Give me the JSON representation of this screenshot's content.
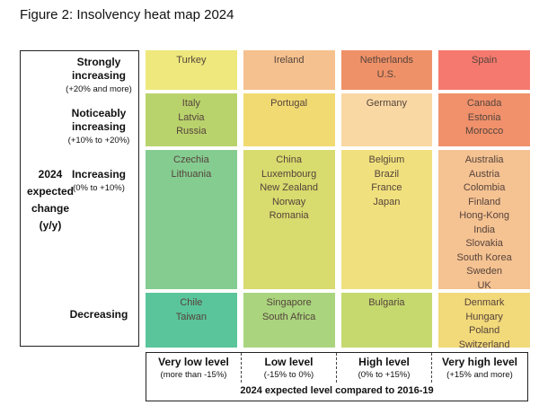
{
  "figure": {
    "title": "Figure 2: Insolvency heat map 2024"
  },
  "y_axis": {
    "title_lines": [
      "2024",
      "expected",
      "change",
      "(y/y)"
    ],
    "categories": [
      {
        "label": "Strongly increasing",
        "sublabel": "(+20% and more)"
      },
      {
        "label": "Noticeably increasing",
        "sublabel": "(+10% to +20%)"
      },
      {
        "label": "Increasing",
        "sublabel": "(0% to +10%)"
      },
      {
        "label": "Decreasing",
        "sublabel": ""
      }
    ]
  },
  "x_axis": {
    "categories": [
      {
        "label": "Very low level",
        "sublabel": "(more than -15%)"
      },
      {
        "label": "Low level",
        "sublabel": "(-15% to 0%)"
      },
      {
        "label": "High level",
        "sublabel": "(0% to +15%)"
      },
      {
        "label": "Very high level",
        "sublabel": "(+15% and more)"
      }
    ],
    "caption": "2024 expected level compared to 2016-19"
  },
  "chart_data": {
    "type": "heatmap",
    "title": "Figure 2: Insolvency heat map 2024",
    "row_labels": [
      "Strongly increasing (+20% and more)",
      "Noticeably increasing (+10% to +20%)",
      "Increasing (0% to +10%)",
      "Decreasing"
    ],
    "column_labels": [
      "Very low level (more than -15%)",
      "Low level (-15% to 0%)",
      "High level (0% to +15%)",
      "Very high level (+15% and more)"
    ],
    "cells": [
      {
        "row": 0,
        "col": 0,
        "countries": [
          "Turkey"
        ],
        "color": "#eee87d"
      },
      {
        "row": 0,
        "col": 1,
        "countries": [
          "Ireland"
        ],
        "color": "#f5c18e"
      },
      {
        "row": 0,
        "col": 2,
        "countries": [
          "Netherlands",
          "U.S."
        ],
        "color": "#ef9168"
      },
      {
        "row": 0,
        "col": 3,
        "countries": [
          "Spain"
        ],
        "color": "#f5796e"
      },
      {
        "row": 1,
        "col": 0,
        "countries": [
          "Italy",
          "Latvia",
          "Russia"
        ],
        "color": "#b9d36c"
      },
      {
        "row": 1,
        "col": 1,
        "countries": [
          "Portugal"
        ],
        "color": "#f1da72"
      },
      {
        "row": 1,
        "col": 2,
        "countries": [
          "Germany"
        ],
        "color": "#f9d8a4"
      },
      {
        "row": 1,
        "col": 3,
        "countries": [
          "Canada",
          "Estonia",
          "Morocco"
        ],
        "color": "#f0916b"
      },
      {
        "row": 2,
        "col": 0,
        "countries": [
          "Czechia",
          "Lithuania"
        ],
        "color": "#85cc91"
      },
      {
        "row": 2,
        "col": 1,
        "countries": [
          "China",
          "Luxembourg",
          "New Zealand",
          "Norway",
          "Romania"
        ],
        "color": "#d8db6e"
      },
      {
        "row": 2,
        "col": 2,
        "countries": [
          "Belgium",
          "Brazil",
          "France",
          "Japan"
        ],
        "color": "#f0e17e"
      },
      {
        "row": 2,
        "col": 3,
        "countries": [
          "Australia",
          "Austria",
          "Colombia",
          "Finland",
          "Hong-Kong",
          "India",
          "Slovakia",
          "South Korea",
          "Sweden",
          "UK"
        ],
        "color": "#f5c292"
      },
      {
        "row": 3,
        "col": 0,
        "countries": [
          "Chile",
          "Taiwan"
        ],
        "color": "#5ac59b"
      },
      {
        "row": 3,
        "col": 1,
        "countries": [
          "Singapore",
          "South Africa"
        ],
        "color": "#aad57e"
      },
      {
        "row": 3,
        "col": 2,
        "countries": [
          "Bulgaria"
        ],
        "color": "#c5d96f"
      },
      {
        "row": 3,
        "col": 3,
        "countries": [
          "Denmark",
          "Hungary",
          "Poland",
          "Switzerland"
        ],
        "color": "#f2d97a"
      }
    ]
  }
}
